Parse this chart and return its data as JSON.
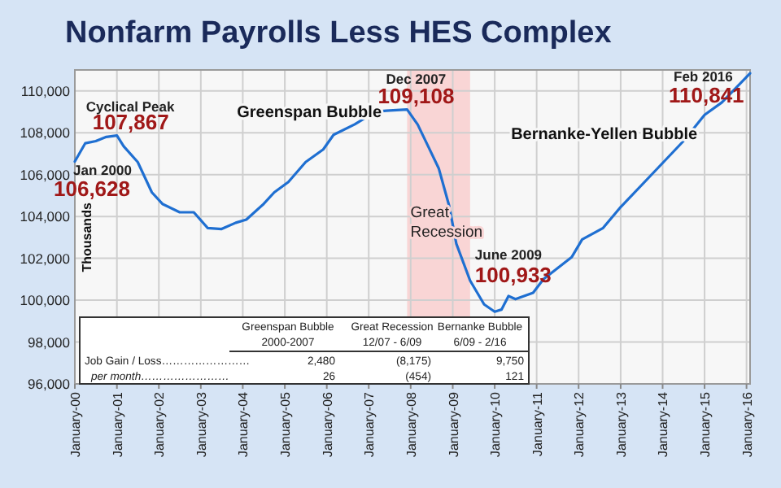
{
  "chart_data": [
    {
      "type": "line",
      "title": "Nonfarm Payrolls Less HES Complex",
      "ylabel": "Thousands",
      "series": [
        {
          "color": "#1f6fd1",
          "x": [
            "2000-01",
            "2000-04",
            "2000-07",
            "2000-10",
            "2001-01",
            "2001-03",
            "2001-07",
            "2001-11",
            "2002-02",
            "2002-07",
            "2002-11",
            "2003-03",
            "2003-07",
            "2003-11",
            "2004-02",
            "2004-07",
            "2004-10",
            "2005-02",
            "2005-07",
            "2005-12",
            "2006-03",
            "2006-09",
            "2007-03",
            "2007-06",
            "2007-12",
            "2008-03",
            "2008-06",
            "2008-09",
            "2008-12",
            "2009-02",
            "2009-06",
            "2009-10",
            "2010-01",
            "2010-03",
            "2010-05",
            "2010-07",
            "2010-12",
            "2011-03",
            "2011-11",
            "2012-02",
            "2012-08",
            "2013-01",
            "2013-11",
            "2014-07",
            "2015-01",
            "2015-06",
            "2016-02"
          ],
          "values": [
            106628,
            107500,
            107600,
            107800,
            107867,
            107350,
            106600,
            105150,
            104600,
            104200,
            104200,
            103450,
            103400,
            103700,
            103850,
            104600,
            105150,
            105650,
            106600,
            107200,
            107900,
            108400,
            109000,
            109050,
            109108,
            108400,
            107350,
            106300,
            104500,
            102700,
            100933,
            99800,
            99450,
            99550,
            100200,
            100050,
            100350,
            101000,
            102050,
            102900,
            103450,
            104450,
            106200,
            107600,
            108850,
            109450,
            110841
          ]
        }
      ],
      "xlim": [
        "2000-01",
        "2016-02"
      ],
      "xticks": [
        {
          "value": "2000-01",
          "label": "January-00"
        },
        {
          "value": "2001-01",
          "label": "January-01"
        },
        {
          "value": "2002-01",
          "label": "January-02"
        },
        {
          "value": "2003-01",
          "label": "January-03"
        },
        {
          "value": "2004-01",
          "label": "January-04"
        },
        {
          "value": "2005-01",
          "label": "January-05"
        },
        {
          "value": "2006-01",
          "label": "January-06"
        },
        {
          "value": "2007-01",
          "label": "January-07"
        },
        {
          "value": "2008-01",
          "label": "January-08"
        },
        {
          "value": "2009-01",
          "label": "January-09"
        },
        {
          "value": "2010-01",
          "label": "January-10"
        },
        {
          "value": "2011-01",
          "label": "January-11"
        },
        {
          "value": "2012-01",
          "label": "January-12"
        },
        {
          "value": "2013-01",
          "label": "January-13"
        },
        {
          "value": "2014-01",
          "label": "January-14"
        },
        {
          "value": "2015-01",
          "label": "January-15"
        },
        {
          "value": "2016-01",
          "label": "January-16"
        }
      ],
      "ylim": [
        96000,
        111000
      ],
      "yticks": [
        {
          "value": 96000,
          "label": "96,000"
        },
        {
          "value": 98000,
          "label": "98,000"
        },
        {
          "value": 100000,
          "label": "100,000"
        },
        {
          "value": 102000,
          "label": "102,000"
        },
        {
          "value": 104000,
          "label": "104,000"
        },
        {
          "value": 106000,
          "label": "106,000"
        },
        {
          "value": 108000,
          "label": "108,000"
        },
        {
          "value": 110000,
          "label": "110,000"
        }
      ],
      "grid": true,
      "marker": "none",
      "line_style": "solid",
      "bands": [
        {
          "axis": "x",
          "from": "2007-12",
          "to": "2009-06",
          "label": "Great Recession",
          "color": "#f9d5d5"
        }
      ],
      "annotations": [
        {
          "text": "Jan 2000",
          "x": "2000-01",
          "y": 106628
        },
        {
          "text": "106,628",
          "x": "2000-01",
          "y": 106628
        },
        {
          "text": "Cyclical Peak",
          "x": "2001-01",
          "y": 107867
        },
        {
          "text": "107,867",
          "x": "2001-01",
          "y": 107867
        },
        {
          "text": "Dec 2007",
          "x": "2007-12",
          "y": 109108
        },
        {
          "text": "109,108",
          "x": "2007-12",
          "y": 109108
        },
        {
          "text": "June 2009",
          "x": "2009-06",
          "y": 100933
        },
        {
          "text": "100,933",
          "x": "2009-06",
          "y": 100933
        },
        {
          "text": "Feb 2016",
          "x": "2016-02",
          "y": 110841
        },
        {
          "text": "110,841",
          "x": "2016-02",
          "y": 110841
        },
        "Greenspan Bubble",
        "Bernanke-Yellen Bubble"
      ]
    },
    {
      "type": "other",
      "annotations": [
        "Greenspan Bubble",
        "Great Recession",
        "Bernanke Bubble",
        "2000-2007",
        "12/07 - 6/09",
        "6/09 - 2/16",
        "Job Gain / Loss……………………",
        "2,480",
        "(8,175)",
        "9,750",
        "per month……………………",
        "26",
        "(454)",
        "121"
      ]
    }
  ]
}
